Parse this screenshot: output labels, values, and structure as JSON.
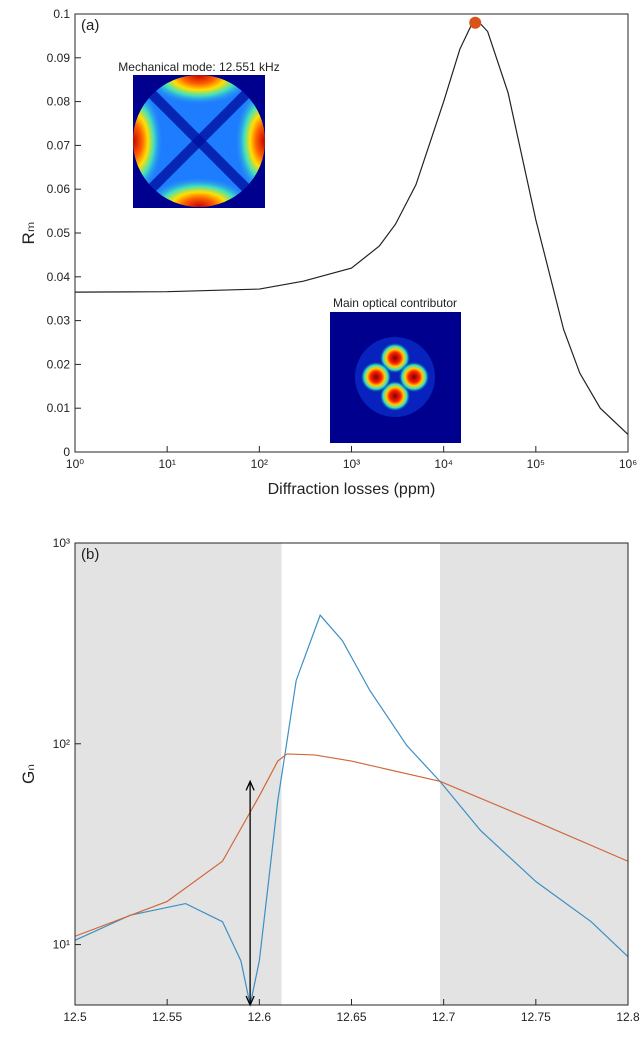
{
  "chart_data": [
    {
      "type": "line",
      "panel_label": "(a)",
      "xlabel": "Diffraction losses (ppm)",
      "ylabel": "Rₘ",
      "xscale": "log",
      "xlim": [
        1,
        1000000
      ],
      "ylim": [
        0,
        0.1
      ],
      "xticks": [
        {
          "value": 1,
          "label": "10⁰"
        },
        {
          "value": 10,
          "label": "10¹"
        },
        {
          "value": 100,
          "label": "10²"
        },
        {
          "value": 1000,
          "label": "10³"
        },
        {
          "value": 10000,
          "label": "10⁴"
        },
        {
          "value": 100000,
          "label": "10⁵"
        },
        {
          "value": 1000000,
          "label": "10⁶"
        }
      ],
      "yticks": [
        0,
        0.01,
        0.02,
        0.03,
        0.04,
        0.05,
        0.06,
        0.07,
        0.08,
        0.09,
        0.1
      ],
      "x": [
        1,
        10,
        100,
        300,
        1000,
        2000,
        3000,
        5000,
        10000,
        15000,
        20000,
        25000,
        30000,
        50000,
        100000,
        200000,
        300000,
        500000,
        1000000
      ],
      "series": [
        {
          "color": "#222222",
          "values": [
            0.0365,
            0.0366,
            0.0372,
            0.039,
            0.042,
            0.047,
            0.052,
            0.061,
            0.08,
            0.092,
            0.0975,
            0.0978,
            0.096,
            0.082,
            0.053,
            0.028,
            0.018,
            0.01,
            0.004
          ]
        }
      ],
      "highlight": {
        "x": 22000,
        "y": 0.098,
        "color": "#d95319"
      },
      "annotations": [
        "Mechanical mode: 12.551 kHz",
        "Main optical contributor"
      ]
    },
    {
      "type": "line",
      "panel_label": "(b)",
      "xlabel": "Mechanical mode frequency (kHz)",
      "ylabel": "Gₙ",
      "yscale": "log",
      "xlim": [
        12.5,
        12.8
      ],
      "ylim": [
        5,
        1000
      ],
      "xticks": [
        12.5,
        12.55,
        12.6,
        12.65,
        12.7,
        12.75,
        12.8
      ],
      "yticks": [
        {
          "value": 10,
          "label": "10¹"
        },
        {
          "value": 100,
          "label": "10²"
        },
        {
          "value": 1000,
          "label": "10³"
        }
      ],
      "shaded_regions": [
        [
          12.5,
          12.612
        ],
        [
          12.698,
          12.8
        ]
      ],
      "arrow": {
        "x": 12.595,
        "y": [
          5,
          65
        ]
      },
      "series": [
        {
          "color": "#3b8fc4",
          "x": [
            12.5,
            12.53,
            12.56,
            12.58,
            12.59,
            12.595,
            12.6,
            12.605,
            12.61,
            12.615,
            12.62,
            12.633,
            12.645,
            12.66,
            12.68,
            12.698,
            12.72,
            12.75,
            12.78,
            12.8
          ],
          "values": [
            10.5,
            14,
            16,
            13,
            8.3,
            5,
            8.3,
            20.6,
            52,
            103,
            207,
            437,
            327,
            184,
            98,
            65,
            37,
            20.6,
            13,
            8.7
          ]
        },
        {
          "color": "#d0683a",
          "x": [
            12.5,
            12.55,
            12.58,
            12.6,
            12.61,
            12.615,
            12.63,
            12.65,
            12.698,
            12.75,
            12.8
          ],
          "values": [
            11,
            16.4,
            26,
            55,
            82,
            89,
            88,
            82,
            65,
            41,
            26
          ]
        }
      ]
    }
  ]
}
